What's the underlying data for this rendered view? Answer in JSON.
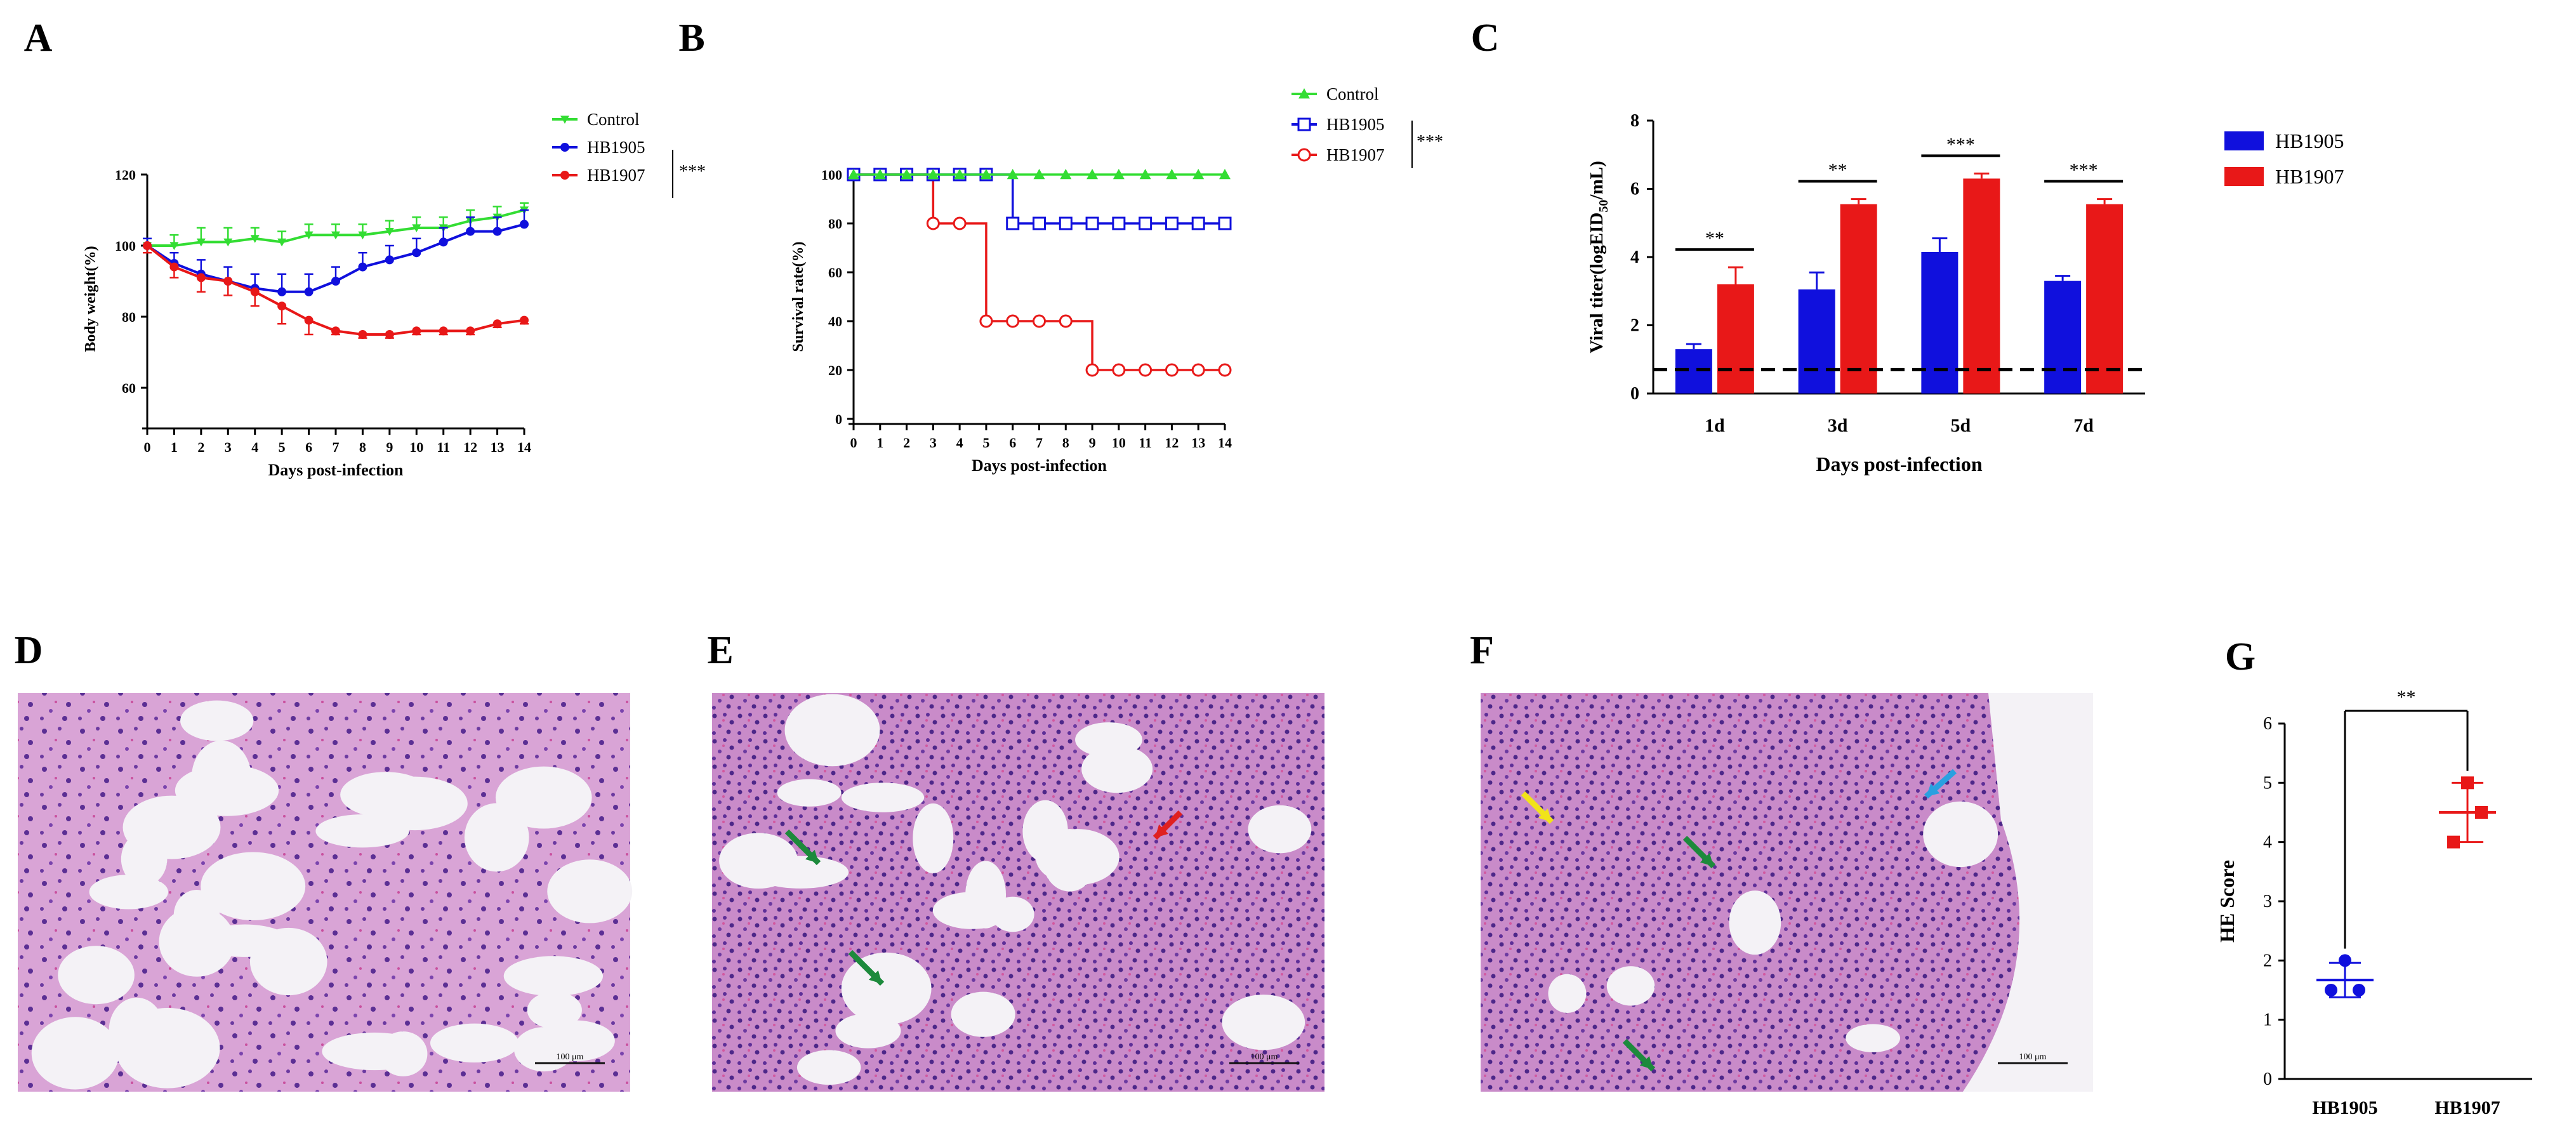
{
  "colors": {
    "control": "#33dd33",
    "hb1905": "#1010dd",
    "hb1907": "#e81818",
    "tissue_bg": "#ecd8ea",
    "tissue_cell": "#7b4aa8",
    "tissue_pink": "#d868b4"
  },
  "panels": {
    "a": "A",
    "b": "B",
    "c": "C",
    "d": "D",
    "e": "E",
    "f": "F",
    "g": "G"
  },
  "scale_bars": {
    "d": "100 μm",
    "e": "100 μm",
    "f": "100 μm"
  },
  "arrows": {
    "e": [
      "green",
      "green",
      "red"
    ],
    "f": [
      "yellow",
      "green",
      "green",
      "blue"
    ]
  },
  "chart_data": [
    {
      "id": "A",
      "type": "line",
      "xlabel": "Days post-infection",
      "ylabel": "Body weight(%)",
      "x": [
        0,
        1,
        2,
        3,
        4,
        5,
        6,
        7,
        8,
        9,
        10,
        11,
        12,
        13,
        14
      ],
      "xlim": [
        0,
        14
      ],
      "ylim": [
        50,
        120
      ],
      "yticks": [
        60,
        80,
        100,
        120
      ],
      "series": [
        {
          "name": "Control",
          "marker": "triangle-down",
          "values": [
            100,
            100,
            101,
            101,
            102,
            101,
            103,
            103,
            103,
            104,
            105,
            105,
            107,
            108,
            110
          ],
          "errors": [
            2,
            3,
            4,
            4,
            3,
            3,
            3,
            3,
            3,
            3,
            3,
            3,
            3,
            3,
            2
          ]
        },
        {
          "name": "HB1905",
          "marker": "circle",
          "values": [
            100,
            95,
            92,
            90,
            88,
            87,
            87,
            90,
            94,
            96,
            98,
            101,
            104,
            104,
            106
          ],
          "errors": [
            2,
            3,
            4,
            4,
            4,
            5,
            5,
            4,
            4,
            4,
            4,
            4,
            4,
            4,
            4
          ]
        },
        {
          "name": "HB1907",
          "marker": "circle",
          "values": [
            100,
            94,
            91,
            90,
            87,
            83,
            79,
            76,
            75,
            75,
            76,
            76,
            76,
            78,
            79
          ],
          "errors": [
            2,
            3,
            4,
            4,
            4,
            5,
            4,
            1,
            1,
            1,
            1,
            1,
            1,
            1,
            1
          ]
        }
      ],
      "legend_position": "top-right",
      "significance": "***"
    },
    {
      "id": "B",
      "type": "line",
      "step": true,
      "xlabel": "Days post-infection",
      "ylabel": "Survival rate(%)",
      "x": [
        0,
        1,
        2,
        3,
        4,
        5,
        6,
        7,
        8,
        9,
        10,
        11,
        12,
        13,
        14
      ],
      "xlim": [
        0,
        14
      ],
      "ylim": [
        0,
        100
      ],
      "yticks": [
        0,
        20,
        40,
        60,
        80,
        100
      ],
      "series": [
        {
          "name": "Control",
          "marker": "triangle",
          "values": [
            100,
            100,
            100,
            100,
            100,
            100,
            100,
            100,
            100,
            100,
            100,
            100,
            100,
            100,
            100
          ]
        },
        {
          "name": "HB1905",
          "marker": "square-open",
          "values": [
            100,
            100,
            100,
            100,
            100,
            100,
            80,
            80,
            80,
            80,
            80,
            80,
            80,
            80,
            80
          ]
        },
        {
          "name": "HB1907",
          "marker": "circle-open",
          "values": [
            100,
            100,
            100,
            80,
            80,
            40,
            40,
            40,
            40,
            20,
            20,
            20,
            20,
            20,
            20
          ]
        }
      ],
      "legend_position": "top-right",
      "significance": "***"
    },
    {
      "id": "C",
      "type": "bar",
      "xlabel": "Days post-infection",
      "ylabel": "Viral titer(logEID50/mL)",
      "ylabel_main": "Viral titer(logEID",
      "ylabel_sub": "50",
      "ylabel_tail": "/mL)",
      "categories": [
        "1d",
        "3d",
        "5d",
        "7d"
      ],
      "ylim": [
        0,
        8
      ],
      "yticks": [
        0,
        2,
        4,
        6,
        8
      ],
      "series": [
        {
          "name": "HB1905",
          "values": [
            1.3,
            3.05,
            4.15,
            3.3
          ],
          "errors": [
            0.15,
            0.5,
            0.4,
            0.15
          ]
        },
        {
          "name": "HB1907",
          "values": [
            3.2,
            5.55,
            6.3,
            5.55
          ],
          "errors": [
            0.5,
            0.15,
            0.15,
            0.15
          ]
        }
      ],
      "detection_limit": 0.7,
      "significance": [
        "**",
        "**",
        "***",
        "***"
      ],
      "legend_position": "right"
    },
    {
      "id": "G",
      "type": "scatter",
      "ylabel": "HE Score",
      "categories": [
        "HB1905",
        "HB1907"
      ],
      "ylim": [
        0,
        6
      ],
      "yticks": [
        0,
        1,
        2,
        3,
        4,
        5,
        6
      ],
      "points": [
        [
          1.5,
          1.5,
          2.0
        ],
        [
          4.0,
          4.5,
          5.0
        ]
      ],
      "means": [
        1.67,
        4.5
      ],
      "errors": [
        0.29,
        0.5
      ],
      "significance": "**"
    }
  ]
}
